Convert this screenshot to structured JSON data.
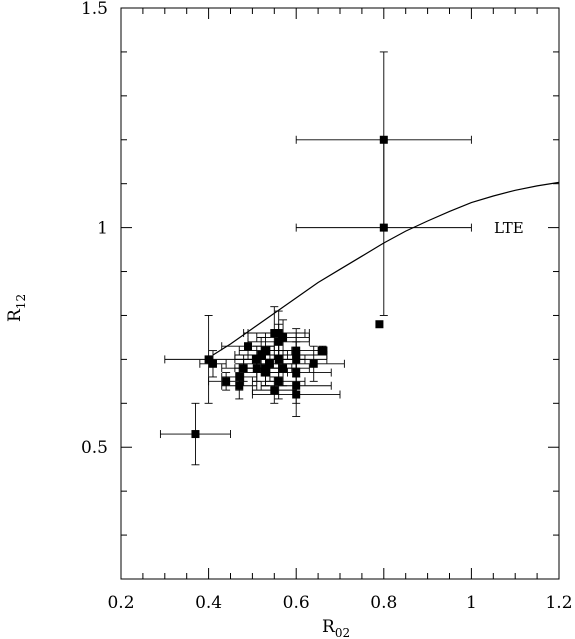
{
  "chart_data": {
    "type": "scatter",
    "xlabel": "R02",
    "ylabel": "R12",
    "xlim": [
      0.2,
      1.2
    ],
    "ylim": [
      0.2,
      1.5
    ],
    "x_ticks": [
      "0.2",
      "0.4",
      "0.6",
      "0.8",
      "1",
      "1.2"
    ],
    "y_ticks": [
      "0.5",
      "1",
      "1.5"
    ],
    "curve_label": "LTE",
    "points": [
      {
        "x": 0.8,
        "y": 1.2,
        "xerr": 0.2,
        "yerr": 0.2
      },
      {
        "x": 0.8,
        "y": 1.0,
        "xerr": 0.2,
        "yerr": 0.2
      },
      {
        "x": 0.79,
        "y": 0.78,
        "xerr": 0.0,
        "yerr": 0.0
      },
      {
        "x": 0.37,
        "y": 0.53,
        "xerr": 0.08,
        "yerr": 0.07
      },
      {
        "x": 0.4,
        "y": 0.7,
        "xerr": 0.1,
        "yerr": 0.1
      },
      {
        "x": 0.41,
        "y": 0.69,
        "xerr": 0.03,
        "yerr": 0.03
      },
      {
        "x": 0.44,
        "y": 0.65,
        "xerr": 0.04,
        "yerr": 0.02
      },
      {
        "x": 0.47,
        "y": 0.64,
        "xerr": 0.04,
        "yerr": 0.03
      },
      {
        "x": 0.47,
        "y": 0.66,
        "xerr": 0.04,
        "yerr": 0.03
      },
      {
        "x": 0.48,
        "y": 0.68,
        "xerr": 0.05,
        "yerr": 0.03
      },
      {
        "x": 0.49,
        "y": 0.73,
        "xerr": 0.06,
        "yerr": 0.03
      },
      {
        "x": 0.51,
        "y": 0.7,
        "xerr": 0.05,
        "yerr": 0.03
      },
      {
        "x": 0.51,
        "y": 0.68,
        "xerr": 0.05,
        "yerr": 0.03
      },
      {
        "x": 0.52,
        "y": 0.71,
        "xerr": 0.06,
        "yerr": 0.04
      },
      {
        "x": 0.53,
        "y": 0.72,
        "xerr": 0.06,
        "yerr": 0.04
      },
      {
        "x": 0.53,
        "y": 0.68,
        "xerr": 0.06,
        "yerr": 0.04
      },
      {
        "x": 0.53,
        "y": 0.67,
        "xerr": 0.05,
        "yerr": 0.03
      },
      {
        "x": 0.54,
        "y": 0.69,
        "xerr": 0.06,
        "yerr": 0.04
      },
      {
        "x": 0.55,
        "y": 0.76,
        "xerr": 0.07,
        "yerr": 0.06
      },
      {
        "x": 0.55,
        "y": 0.63,
        "xerr": 0.05,
        "yerr": 0.03
      },
      {
        "x": 0.56,
        "y": 0.76,
        "xerr": 0.07,
        "yerr": 0.05
      },
      {
        "x": 0.56,
        "y": 0.74,
        "xerr": 0.07,
        "yerr": 0.04
      },
      {
        "x": 0.56,
        "y": 0.7,
        "xerr": 0.06,
        "yerr": 0.04
      },
      {
        "x": 0.56,
        "y": 0.65,
        "xerr": 0.06,
        "yerr": 0.04
      },
      {
        "x": 0.57,
        "y": 0.75,
        "xerr": 0.06,
        "yerr": 0.04
      },
      {
        "x": 0.57,
        "y": 0.68,
        "xerr": 0.06,
        "yerr": 0.04
      },
      {
        "x": 0.6,
        "y": 0.72,
        "xerr": 0.07,
        "yerr": 0.05
      },
      {
        "x": 0.6,
        "y": 0.71,
        "xerr": 0.07,
        "yerr": 0.05
      },
      {
        "x": 0.6,
        "y": 0.7,
        "xerr": 0.07,
        "yerr": 0.04
      },
      {
        "x": 0.6,
        "y": 0.67,
        "xerr": 0.08,
        "yerr": 0.05
      },
      {
        "x": 0.6,
        "y": 0.64,
        "xerr": 0.08,
        "yerr": 0.04
      },
      {
        "x": 0.6,
        "y": 0.62,
        "xerr": 0.1,
        "yerr": 0.05
      },
      {
        "x": 0.64,
        "y": 0.69,
        "xerr": 0.07,
        "yerr": 0.04
      },
      {
        "x": 0.66,
        "y": 0.72,
        "xerr": 0.01,
        "yerr": 0.01
      }
    ],
    "curve": {
      "x": [
        0.41,
        0.45,
        0.5,
        0.55,
        0.6,
        0.65,
        0.7,
        0.75,
        0.8,
        0.85,
        0.9,
        0.95,
        1.0,
        1.05,
        1.1,
        1.15,
        1.2
      ],
      "y": [
        0.71,
        0.735,
        0.77,
        0.805,
        0.84,
        0.875,
        0.905,
        0.935,
        0.965,
        0.992,
        1.015,
        1.037,
        1.057,
        1.072,
        1.085,
        1.095,
        1.103
      ]
    }
  }
}
